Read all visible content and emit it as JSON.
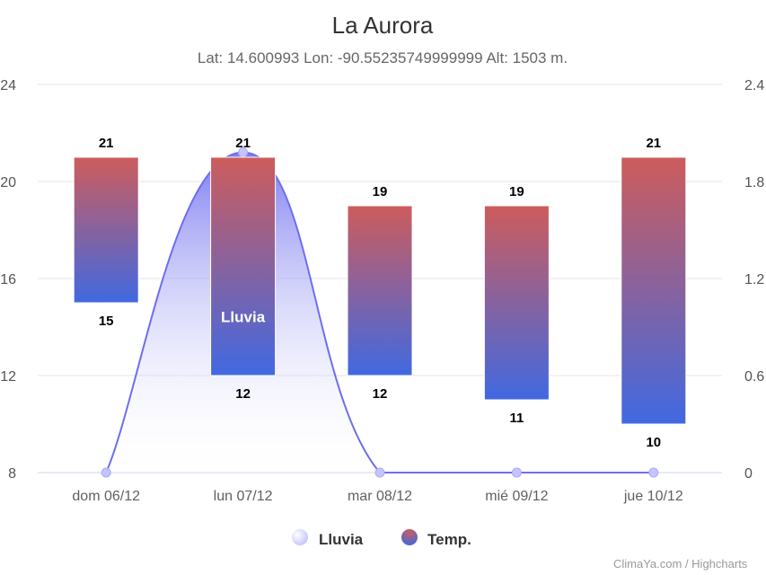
{
  "title": "La Aurora",
  "subtitle": "Lat: 14.600993 Lon: -90.55235749999999 Alt: 1503 m.",
  "credits": "ClimaYa.com / Highcharts",
  "chart_data": {
    "type": "columnrange+areaspline",
    "categories": [
      "dom 06/12",
      "lun 07/12",
      "mar 08/12",
      "mié 09/12",
      "jue 10/12"
    ],
    "temp_axis": {
      "min": 8,
      "max": 24,
      "ticks": [
        "8",
        "12",
        "16",
        "20",
        "24"
      ]
    },
    "rain_axis": {
      "min": 0,
      "max": 2.4,
      "ticks": [
        "0",
        "0.6",
        "1.2",
        "1.8",
        "2.4"
      ]
    },
    "series": [
      {
        "name": "Lluvia",
        "values": [
          0,
          1.98,
          0,
          0,
          0
        ],
        "colors": {
          "light": "#c4c4ff",
          "dark": "#6e6ef0"
        }
      },
      {
        "name": "Temp.",
        "low": [
          15,
          12,
          12,
          11,
          10
        ],
        "high": [
          21,
          21,
          19,
          19,
          21
        ],
        "colors": {
          "top": "#cd5c5c",
          "bottom": "#4169e1"
        }
      }
    ],
    "series_label": "Lluvia",
    "legend_position": "bottom-center",
    "grid": true
  }
}
